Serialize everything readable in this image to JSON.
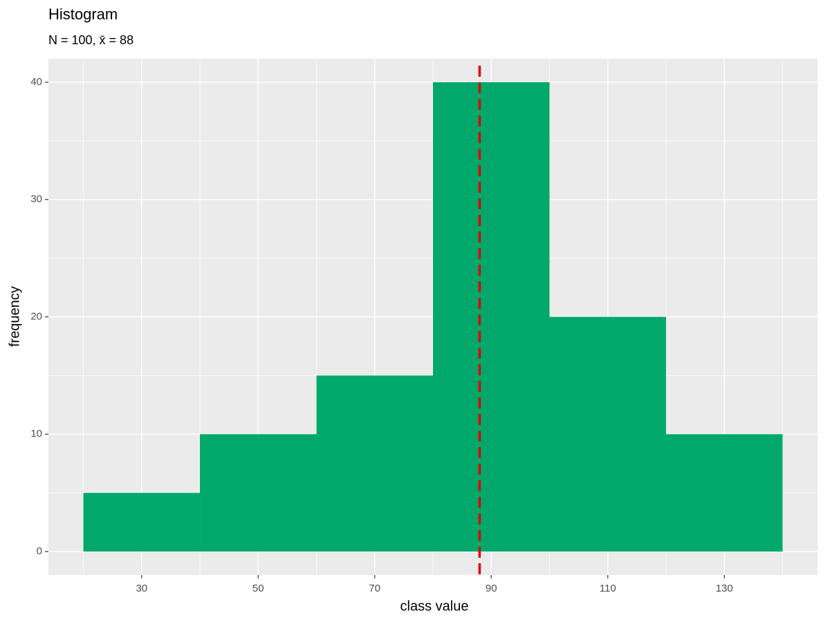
{
  "chart_data": {
    "type": "histogram",
    "title": "Histogram",
    "subtitle": "N = 100, x̄ = 88",
    "x_label": "class value",
    "y_label": "frequency",
    "bins": [
      20,
      40,
      60,
      80,
      100,
      120,
      140
    ],
    "values": [
      5,
      10,
      15,
      40,
      20,
      10
    ],
    "color": "#00a86b",
    "mean_line": {
      "value": 88,
      "color": "#e00000",
      "dashed": true
    },
    "xlim": [
      14,
      146
    ],
    "xticks": [
      30,
      50,
      70,
      90,
      110,
      130
    ],
    "ylim": [
      -2,
      42
    ],
    "yticks": [
      0,
      10,
      20,
      30,
      40
    ],
    "grid": true
  }
}
